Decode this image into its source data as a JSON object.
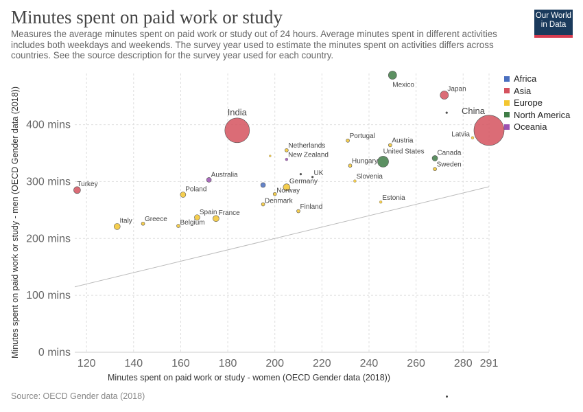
{
  "header": {
    "title": "Minutes spent on paid work or study",
    "subtitle": "Measures the average minutes spent on paid work or study out of 24 hours. Average minutes spent in different activities includes both weekdays and weekends. The survey year used to estimate the minutes spent on activities differs across countries. See the source description for the survey year used for each country."
  },
  "logo": {
    "line1": "Our World",
    "line2": "in Data"
  },
  "footer": {
    "source": "Source: OECD Gender data (2018)"
  },
  "colors": {
    "Africa": "#4a6fbf",
    "Asia": "#d5525e",
    "Europe": "#f3c630",
    "North America": "#3f7d46",
    "Oceania": "#9b52b0",
    "Other": "#333333"
  },
  "legend": [
    {
      "name": "Africa"
    },
    {
      "name": "Asia"
    },
    {
      "name": "Europe"
    },
    {
      "name": "North America"
    },
    {
      "name": "Oceania"
    }
  ],
  "chart_data": {
    "type": "scatter",
    "title": "Minutes spent on paid work or study",
    "xlabel": "Minutes spent on paid work or study - women (OECD Gender data (2018))",
    "ylabel": "Minutes spent on paid work or study - men (OECD Gender data (2018))",
    "xlim": [
      115,
      291
    ],
    "ylim": [
      0,
      490
    ],
    "x_ticks": [
      120,
      140,
      160,
      180,
      200,
      220,
      240,
      260,
      280,
      291
    ],
    "y_ticks": [
      0,
      100,
      200,
      300,
      400
    ],
    "y_tick_labels": [
      "0 mins",
      "100 mins",
      "200 mins",
      "300 mins",
      "400 mins"
    ],
    "grid": true,
    "legend_position": "top-right",
    "reference_line": "y = x",
    "points": [
      {
        "label": "Mexico",
        "region": "North America",
        "x": 250,
        "y": 487,
        "size": 6
      },
      {
        "label": "Japan",
        "region": "Asia",
        "x": 272,
        "y": 452,
        "size": 6
      },
      {
        "label": "",
        "region": "Other",
        "x": 273,
        "y": 421,
        "size": 1.5
      },
      {
        "label": "China",
        "region": "Asia",
        "x": 291,
        "y": 390,
        "size": 22,
        "big": true
      },
      {
        "label": "Latvia",
        "region": "Europe",
        "x": 284,
        "y": 377,
        "size": 2
      },
      {
        "label": "India",
        "region": "Asia",
        "x": 184,
        "y": 390,
        "size": 18,
        "big": true
      },
      {
        "label": "Portugal",
        "region": "Europe",
        "x": 231,
        "y": 372,
        "size": 2.5
      },
      {
        "label": "Austria",
        "region": "Europe",
        "x": 249,
        "y": 364,
        "size": 2.5
      },
      {
        "label": "Netherlands",
        "region": "Europe",
        "x": 205,
        "y": 355,
        "size": 2.5
      },
      {
        "label": "",
        "region": "Europe",
        "x": 198,
        "y": 345,
        "size": 1.5
      },
      {
        "label": "New Zealand",
        "region": "Oceania",
        "x": 205,
        "y": 339,
        "size": 2
      },
      {
        "label": "United States",
        "region": "North America",
        "x": 246,
        "y": 335,
        "size": 8
      },
      {
        "label": "Canada",
        "region": "North America",
        "x": 268,
        "y": 341,
        "size": 4
      },
      {
        "label": "Hungary",
        "region": "Europe",
        "x": 232,
        "y": 328,
        "size": 2.5
      },
      {
        "label": "Sweden",
        "region": "Europe",
        "x": 268,
        "y": 322,
        "size": 2.5
      },
      {
        "label": "",
        "region": "Other",
        "x": 211,
        "y": 313,
        "size": 1.5
      },
      {
        "label": "UK",
        "region": "Other",
        "x": 216,
        "y": 308,
        "size": 1.5
      },
      {
        "label": "Slovenia",
        "region": "Europe",
        "x": 234,
        "y": 301,
        "size": 2
      },
      {
        "label": "Australia",
        "region": "Oceania",
        "x": 172,
        "y": 303,
        "size": 3.5
      },
      {
        "label": "Turkey",
        "region": "Asia",
        "x": 116,
        "y": 285,
        "size": 5
      },
      {
        "label": "",
        "region": "Africa",
        "x": 195,
        "y": 294,
        "size": 3.5
      },
      {
        "label": "Germany",
        "region": "Europe",
        "x": 205,
        "y": 290,
        "size": 5
      },
      {
        "label": "Norway",
        "region": "Europe",
        "x": 200,
        "y": 278,
        "size": 2.5
      },
      {
        "label": "Poland",
        "region": "Europe",
        "x": 161,
        "y": 277,
        "size": 4
      },
      {
        "label": "Estonia",
        "region": "Europe",
        "x": 245,
        "y": 264,
        "size": 2
      },
      {
        "label": "Denmark",
        "region": "Europe",
        "x": 195,
        "y": 260,
        "size": 2.5
      },
      {
        "label": "Finland",
        "region": "Europe",
        "x": 210,
        "y": 248,
        "size": 2.5
      },
      {
        "label": "Spain",
        "region": "Europe",
        "x": 167,
        "y": 237,
        "size": 4
      },
      {
        "label": "France",
        "region": "Europe",
        "x": 175,
        "y": 235,
        "size": 4.5
      },
      {
        "label": "Greece",
        "region": "Europe",
        "x": 144,
        "y": 226,
        "size": 2.5
      },
      {
        "label": "Belgium",
        "region": "Europe",
        "x": 159,
        "y": 222,
        "size": 2.5
      },
      {
        "label": "Italy",
        "region": "Europe",
        "x": 133,
        "y": 221,
        "size": 4.5
      }
    ]
  }
}
